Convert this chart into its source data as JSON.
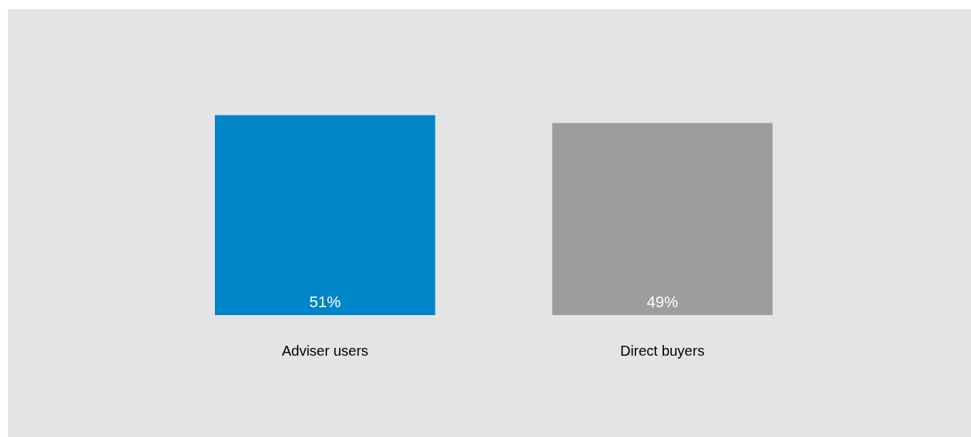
{
  "chart_data": {
    "type": "bar",
    "categories": [
      "Adviser users",
      "Direct buyers"
    ],
    "values": [
      51,
      49
    ],
    "colors": [
      "#0085c9",
      "#9d9d9b"
    ],
    "value_labels": [
      "51%",
      "49%"
    ]
  }
}
